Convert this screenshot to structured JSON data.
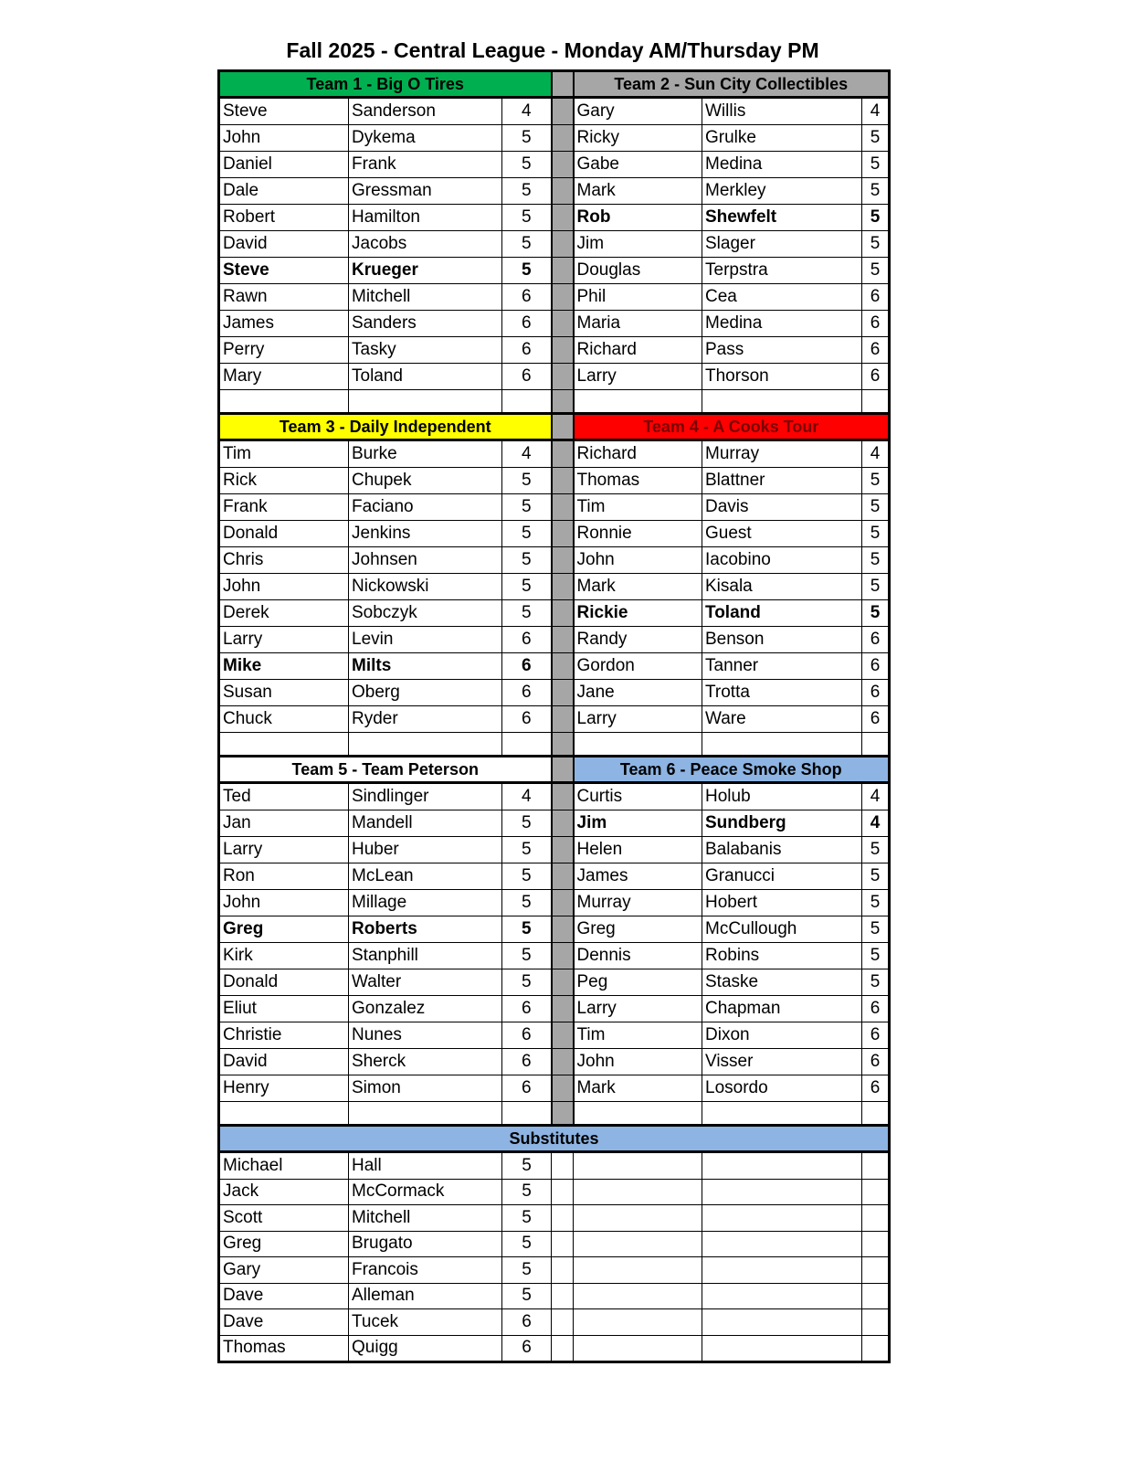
{
  "title": "Fall 2025 - Central League -  Monday AM/Thursday PM",
  "colors": {
    "green": "#00b050",
    "gray": "#a6a6a6",
    "yellow": "#ffff00",
    "red": "#ff0000",
    "blue": "#8db4e2",
    "white": "#ffffff"
  },
  "sections": [
    {
      "left": {
        "name": "Team 1 - Big O Tires",
        "color": "#00b050",
        "players": [
          [
            "Steve",
            "Sanderson",
            "4"
          ],
          [
            "John",
            "Dykema",
            "5"
          ],
          [
            "Daniel",
            "Frank",
            "5"
          ],
          [
            "Dale",
            "Gressman",
            "5"
          ],
          [
            "Robert",
            "Hamilton",
            "5"
          ],
          [
            "David",
            "Jacobs",
            "5"
          ],
          [
            "Steve",
            "Krueger",
            "5",
            true
          ],
          [
            "Rawn",
            "Mitchell",
            "6"
          ],
          [
            "James",
            "Sanders",
            "6"
          ],
          [
            "Perry",
            "Tasky",
            "6"
          ],
          [
            "Mary",
            "Toland",
            "6"
          ]
        ]
      },
      "right": {
        "name": "Team 2 - Sun City Collectibles",
        "color": "#a6a6a6",
        "players": [
          [
            "Gary",
            "Willis",
            "4"
          ],
          [
            "Ricky",
            "Grulke",
            "5"
          ],
          [
            "Gabe",
            "Medina",
            "5"
          ],
          [
            "Mark",
            "Merkley",
            "5"
          ],
          [
            "Rob",
            "Shewfelt",
            "5",
            true
          ],
          [
            "Jim",
            "Slager",
            "5"
          ],
          [
            "Douglas",
            "Terpstra",
            "5"
          ],
          [
            "Phil",
            "Cea",
            "6"
          ],
          [
            "Maria",
            "Medina",
            "6"
          ],
          [
            "Richard",
            "Pass",
            "6"
          ],
          [
            "Larry",
            "Thorson",
            "6"
          ]
        ]
      }
    },
    {
      "left": {
        "name": "Team 3 - Daily Independent",
        "color": "#ffff00",
        "players": [
          [
            "Tim",
            "Burke",
            "4"
          ],
          [
            "Rick",
            "Chupek",
            "5"
          ],
          [
            "Frank",
            "Faciano",
            "5"
          ],
          [
            "Donald",
            "Jenkins",
            "5"
          ],
          [
            "Chris",
            "Johnsen",
            "5"
          ],
          [
            "John",
            "Nickowski",
            "5"
          ],
          [
            "Derek",
            "Sobczyk",
            "5"
          ],
          [
            "Larry",
            "Levin",
            "6"
          ],
          [
            "Mike",
            "Milts",
            "6",
            true
          ],
          [
            "Susan",
            "Oberg",
            "6"
          ],
          [
            "Chuck",
            "Ryder",
            "6"
          ]
        ]
      },
      "right": {
        "name": "Team 4 - A Cooks Tour",
        "color": "#ff0000",
        "players": [
          [
            "Richard",
            "Murray",
            "4"
          ],
          [
            "Thomas",
            "Blattner",
            "5"
          ],
          [
            "Tim",
            "Davis",
            "5"
          ],
          [
            "Ronnie",
            "Guest",
            "5"
          ],
          [
            "John",
            "Iacobino",
            "5"
          ],
          [
            "Mark",
            "Kisala",
            "5"
          ],
          [
            "Rickie",
            "Toland",
            "5",
            true
          ],
          [
            "Randy",
            "Benson",
            "6"
          ],
          [
            "Gordon",
            "Tanner",
            "6"
          ],
          [
            "Jane",
            "Trotta",
            "6"
          ],
          [
            "Larry",
            "Ware",
            "6"
          ]
        ]
      }
    },
    {
      "left": {
        "name": "Team 5 - Team Peterson",
        "color": "#ffffff",
        "players": [
          [
            "Ted",
            "Sindlinger",
            "4"
          ],
          [
            "Jan",
            "Mandell",
            "5"
          ],
          [
            "Larry",
            "Huber",
            "5"
          ],
          [
            "Ron",
            "McLean",
            "5"
          ],
          [
            "John",
            "Millage",
            "5"
          ],
          [
            "Greg",
            "Roberts",
            "5",
            true
          ],
          [
            "Kirk",
            "Stanphill",
            "5"
          ],
          [
            "Donald",
            "Walter",
            "5"
          ],
          [
            "Eliut",
            "Gonzalez",
            "6"
          ],
          [
            "Christie",
            "Nunes",
            "6"
          ],
          [
            "David",
            "Sherck",
            "6"
          ],
          [
            "Henry",
            "Simon",
            "6"
          ]
        ]
      },
      "right": {
        "name": "Team 6 - Peace Smoke Shop",
        "color": "#8db4e2",
        "players": [
          [
            "Curtis",
            "Holub",
            "4"
          ],
          [
            "Jim",
            "Sundberg",
            "4",
            true
          ],
          [
            "Helen",
            "Balabanis",
            "5"
          ],
          [
            "James",
            "Granucci",
            "5"
          ],
          [
            "Murray",
            "Hobert",
            "5"
          ],
          [
            "Greg",
            "McCullough",
            "5"
          ],
          [
            "Dennis",
            "Robins",
            "5"
          ],
          [
            "Peg",
            "Staske",
            "5"
          ],
          [
            "Larry",
            "Chapman",
            "6"
          ],
          [
            "Tim",
            "Dixon",
            "6"
          ],
          [
            "John",
            "Visser",
            "6"
          ],
          [
            "Mark",
            "Losordo",
            "6"
          ]
        ]
      }
    }
  ],
  "substitutes": {
    "name": "Substitutes",
    "color": "#8db4e2",
    "players": [
      [
        "Michael",
        "Hall",
        "5"
      ],
      [
        "Jack",
        "McCormack",
        "5"
      ],
      [
        "Scott",
        "Mitchell",
        "5"
      ],
      [
        "Greg",
        "Brugato",
        "5"
      ],
      [
        "Gary",
        "Francois",
        "5"
      ],
      [
        "Dave",
        "Alleman",
        "5"
      ],
      [
        "Dave",
        "Tucek",
        "6"
      ],
      [
        "Thomas",
        "Quigg",
        "6"
      ]
    ]
  }
}
